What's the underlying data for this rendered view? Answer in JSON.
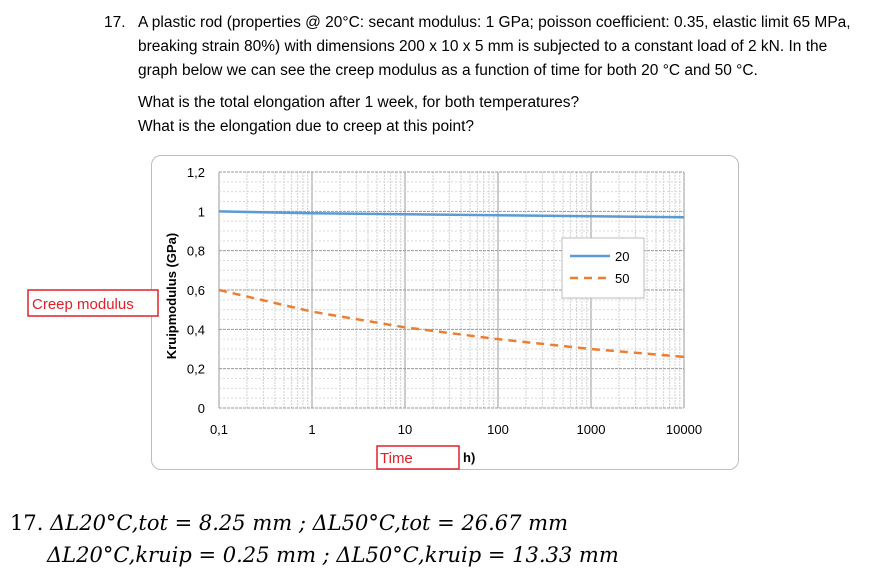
{
  "question": {
    "number": "17.",
    "text": "A plastic rod (properties @ 20°C: secant modulus: 1 GPa; poisson coefficient: 0.35, elastic limit 65 MPa, breaking strain 80%) with dimensions 200 x 10 x 5 mm is subjected to a constant load of 2 kN. In the graph below we can see the creep modulus as a function of time for both 20 °C and 50 °C.",
    "sub1": "What is the total elongation after 1 week, for both temperatures?",
    "sub2": "What is the elongation due to creep at this point?"
  },
  "chart_data": {
    "type": "line",
    "ylabel": "Kruipmodulus (GPa)",
    "xlabel": "h)",
    "x_scale": "log",
    "xlim": [
      0.1,
      10000
    ],
    "ylim": [
      0,
      1.2
    ],
    "x_ticks": [
      "0,1",
      "1",
      "10",
      "100",
      "1000",
      "10000"
    ],
    "y_ticks": [
      "0",
      "0,2",
      "0,4",
      "0,6",
      "0,8",
      "1",
      "1,2"
    ],
    "grid": true,
    "legend_position": "right",
    "series": [
      {
        "name": "20",
        "color": "#5b9bd5",
        "style": "solid",
        "x": [
          0.1,
          1,
          10,
          100,
          1000,
          10000
        ],
        "y": [
          1.0,
          0.99,
          0.985,
          0.98,
          0.975,
          0.97
        ]
      },
      {
        "name": "50",
        "color": "#ed7d31",
        "style": "dashed",
        "x": [
          0.1,
          1,
          10,
          100,
          1000,
          10000
        ],
        "y": [
          0.6,
          0.49,
          0.41,
          0.35,
          0.3,
          0.26
        ]
      }
    ]
  },
  "annotations": {
    "creep_modulus": "Creep modulus",
    "time": "Time",
    "color": "#e0202a"
  },
  "answer": {
    "number": "17.",
    "line1": "ΔL20°C,tot = 8.25 mm ; ΔL50°C,tot = 26.67 mm",
    "line2": "ΔL20°C,kruip = 0.25 mm ; ΔL50°C,kruip = 13.33 mm"
  }
}
